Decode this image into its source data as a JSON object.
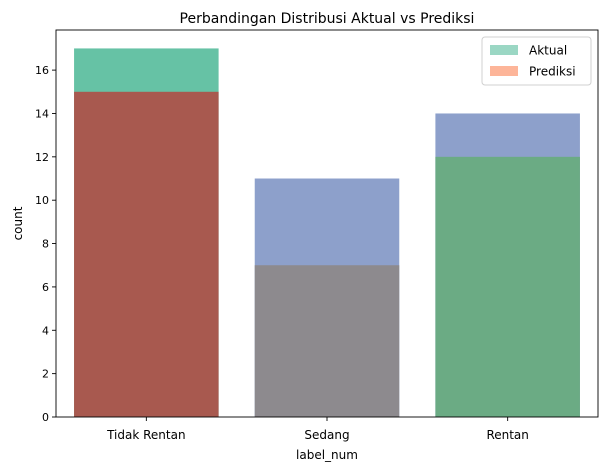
{
  "chart_data": {
    "type": "bar",
    "title": "Perbandingan Distribusi Aktual vs Prediksi",
    "xlabel": "label_num",
    "ylabel": "count",
    "categories": [
      "Tidak Rentan",
      "Sedang",
      "Rentan"
    ],
    "ylim": [
      0,
      17.85
    ],
    "yticks": [
      0,
      2,
      4,
      6,
      8,
      10,
      12,
      14,
      16
    ],
    "grid": false,
    "legend_position": "top-right",
    "overlay": true,
    "series": [
      {
        "name": "Aktual",
        "values": [
          17,
          11,
          14
        ],
        "bar_colors": [
          "#66c2a5",
          "#8da0cb",
          "#8da0cb"
        ],
        "legend_color": "#66c2a5",
        "opacity": 0.65
      },
      {
        "name": "Prediksi",
        "values": [
          15,
          7,
          12
        ],
        "bar_colors": [
          "#a8594f",
          "#8d8a8e",
          "#6bab84"
        ],
        "legend_color": "#fc8d62",
        "opacity": 0.65
      }
    ]
  }
}
